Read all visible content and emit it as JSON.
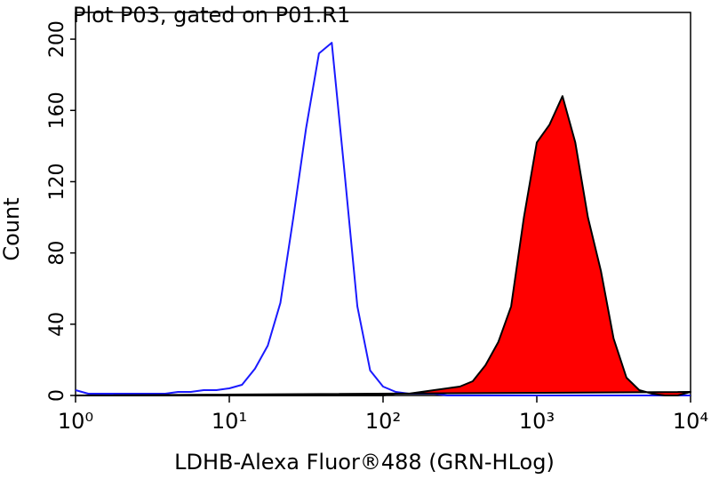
{
  "chart_data": {
    "type": "histogram-overlay",
    "title": "Plot P03, gated on P01.R1",
    "x_label": "LDHB-Alexa Fluor®488 (GRN-HLog)",
    "y_label": "Count",
    "x_log": true,
    "xlim": [
      1,
      10000
    ],
    "ylim": [
      0,
      215
    ],
    "xticks": [
      {
        "value": 1,
        "label": "10⁰"
      },
      {
        "value": 10,
        "label": "10¹"
      },
      {
        "value": 100,
        "label": "10²"
      },
      {
        "value": 1000,
        "label": "10³"
      },
      {
        "value": 10000,
        "label": "10⁴"
      }
    ],
    "yticks": [
      0,
      40,
      80,
      120,
      160,
      200
    ],
    "x": [
      1,
      1.21,
      1.47,
      1.78,
      2.15,
      2.61,
      3.16,
      3.83,
      4.64,
      5.62,
      6.81,
      8.25,
      10,
      12.1,
      14.7,
      17.8,
      21.5,
      26.1,
      31.6,
      38.3,
      46.4,
      56.2,
      68.1,
      82.5,
      100,
      121,
      147,
      178,
      215,
      261,
      316,
      383,
      464,
      562,
      681,
      825,
      1000,
      1210,
      1470,
      1780,
      2150,
      2610,
      3160,
      3830,
      4640,
      5620,
      6810,
      8250,
      10000
    ],
    "series": [
      {
        "color": "#1a1aff",
        "fill": false,
        "values": [
          3,
          1,
          1,
          1,
          1,
          1,
          1,
          1,
          2,
          2,
          3,
          3,
          4,
          6,
          15,
          28,
          52,
          100,
          150,
          192,
          198,
          125,
          50,
          14,
          5,
          2,
          1,
          1,
          1,
          0,
          0,
          0,
          0,
          0,
          0,
          0,
          0,
          0,
          0,
          0,
          0,
          0,
          0,
          0,
          0,
          0,
          0,
          0,
          0
        ]
      },
      {
        "color": "#ff0000",
        "fill": true,
        "outline_color": "#000000",
        "values": [
          0,
          0,
          0,
          0,
          0,
          0,
          0,
          0,
          0,
          0,
          0,
          0,
          0,
          0,
          0,
          0,
          0,
          0,
          0,
          0,
          0,
          0,
          0,
          0,
          0,
          1,
          1,
          2,
          3,
          4,
          5,
          8,
          17,
          30,
          50,
          100,
          142,
          152,
          168,
          142,
          100,
          70,
          32,
          10,
          3,
          1,
          0,
          0,
          2
        ]
      }
    ]
  }
}
